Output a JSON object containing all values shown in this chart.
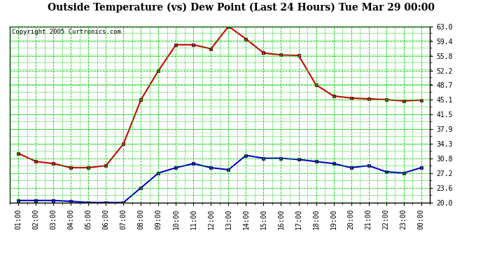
{
  "title": "Outside Temperature (vs) Dew Point (Last 24 Hours) Tue Mar 29 00:00",
  "copyright": "Copyright 2005 Curtronics.com",
  "x_labels": [
    "01:00",
    "02:00",
    "03:00",
    "04:00",
    "05:00",
    "06:00",
    "07:00",
    "08:00",
    "09:00",
    "10:00",
    "11:00",
    "12:00",
    "13:00",
    "14:00",
    "15:00",
    "16:00",
    "17:00",
    "18:00",
    "19:00",
    "20:00",
    "21:00",
    "22:00",
    "23:00",
    "00:00"
  ],
  "temp_data": [
    32.0,
    30.0,
    29.5,
    28.5,
    28.5,
    29.0,
    34.3,
    45.1,
    52.2,
    58.5,
    58.5,
    57.5,
    63.0,
    59.9,
    56.5,
    56.0,
    55.9,
    48.7,
    46.0,
    45.5,
    45.3,
    45.1,
    44.8,
    45.0
  ],
  "dew_data": [
    20.5,
    20.5,
    20.5,
    20.3,
    20.0,
    20.0,
    20.0,
    23.6,
    27.2,
    28.5,
    29.5,
    28.5,
    28.0,
    31.5,
    30.8,
    30.8,
    30.5,
    30.0,
    29.5,
    28.5,
    29.0,
    27.5,
    27.2,
    28.5
  ],
  "temp_color": "#cc0000",
  "dew_color": "#0000cc",
  "bg_color": "#ffffff",
  "plot_bg_color": "#ffffff",
  "grid_color": "#00cc00",
  "border_color": "#000000",
  "y_ticks": [
    20.0,
    23.6,
    27.2,
    30.8,
    34.3,
    37.9,
    41.5,
    45.1,
    48.7,
    52.2,
    55.8,
    59.4,
    63.0
  ],
  "ylim": [
    20.0,
    63.0
  ],
  "marker": "s",
  "marker_size": 3,
  "linewidth": 1.5,
  "title_fontsize": 10,
  "tick_fontsize": 7
}
